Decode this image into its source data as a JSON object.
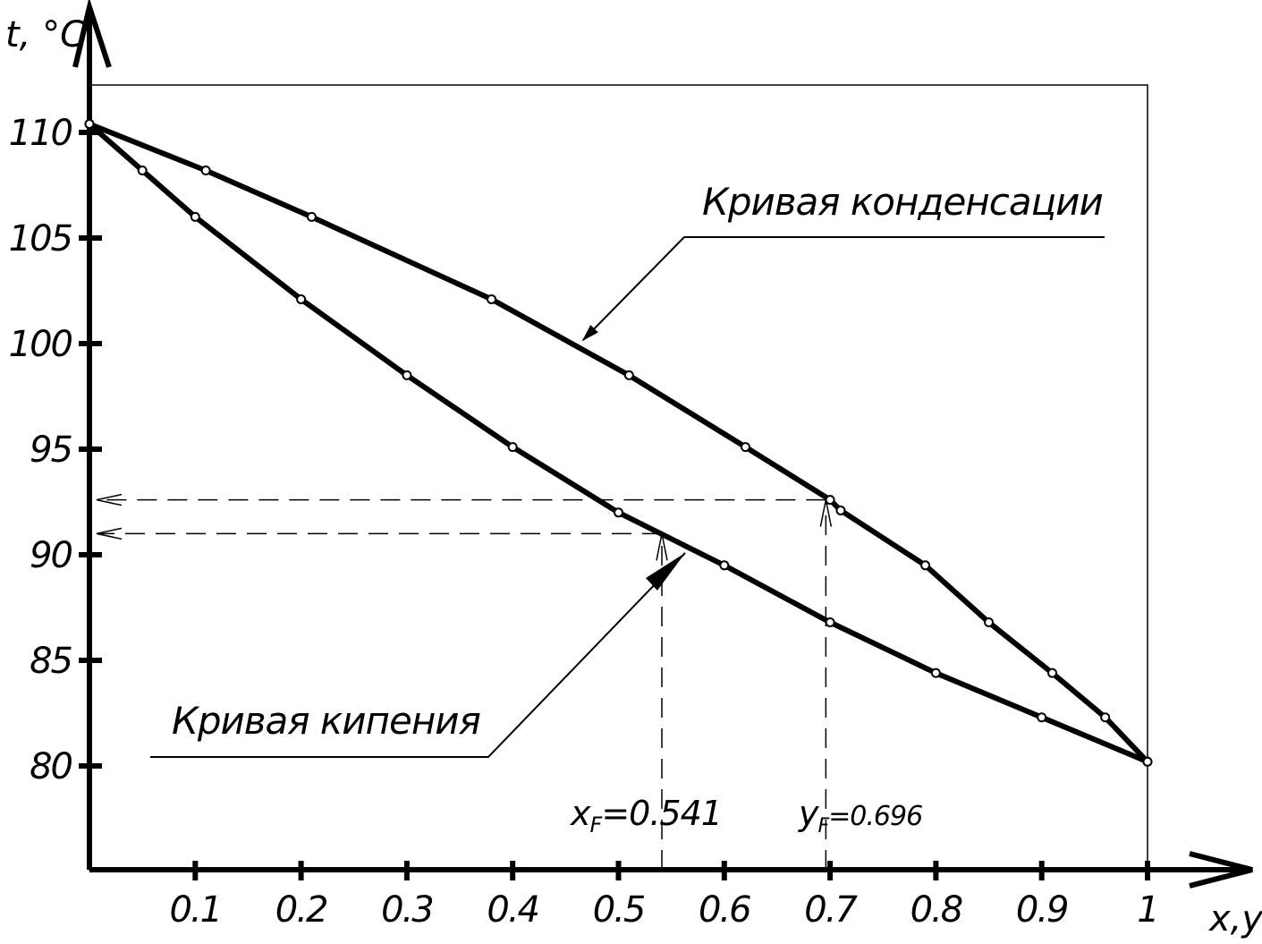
{
  "chart_data": {
    "type": "line",
    "title": "",
    "xlabel": "x,y",
    "ylabel": "t, °C",
    "xlim": [
      0,
      1
    ],
    "ylim": [
      75,
      113
    ],
    "grid": false,
    "x_ticks": [
      "0.1",
      "0.2",
      "0.3",
      "0.4",
      "0.5",
      "0.6",
      "0.7",
      "0.8",
      "0.9",
      "1"
    ],
    "y_ticks": [
      "80",
      "85",
      "90",
      "95",
      "100",
      "105",
      "110"
    ],
    "series": [
      {
        "name": "Кривая кипения",
        "points": [
          [
            0.0,
            110.4
          ],
          [
            0.05,
            108.2
          ],
          [
            0.1,
            106.0
          ],
          [
            0.2,
            102.1
          ],
          [
            0.3,
            98.5
          ],
          [
            0.4,
            95.1
          ],
          [
            0.5,
            92.0
          ],
          [
            0.6,
            89.5
          ],
          [
            0.7,
            86.8
          ],
          [
            0.8,
            84.4
          ],
          [
            0.9,
            82.3
          ],
          [
            1.0,
            80.2
          ]
        ]
      },
      {
        "name": "Кривая конденсации",
        "points": [
          [
            0.0,
            110.4
          ],
          [
            0.11,
            108.2
          ],
          [
            0.21,
            106.0
          ],
          [
            0.38,
            102.1
          ],
          [
            0.51,
            98.5
          ],
          [
            0.62,
            95.1
          ],
          [
            0.7,
            92.6
          ],
          [
            0.71,
            92.1
          ],
          [
            0.79,
            89.5
          ],
          [
            0.85,
            86.8
          ],
          [
            0.91,
            84.4
          ],
          [
            0.96,
            82.3
          ],
          [
            1.0,
            80.2
          ]
        ]
      }
    ],
    "feed": {
      "x_value": 0.541,
      "y_value": 0.696,
      "t_boil": 91.0,
      "t_cond": 92.6,
      "x_label_main": "x",
      "x_label_sub": "F",
      "x_label_val": "=0.541",
      "y_label_main": "y",
      "y_label_sub": "F",
      "y_label_val": "=0.696"
    },
    "annotations": {
      "condensation": "Кривая конденсации",
      "boiling": "Кривая кипения"
    }
  }
}
